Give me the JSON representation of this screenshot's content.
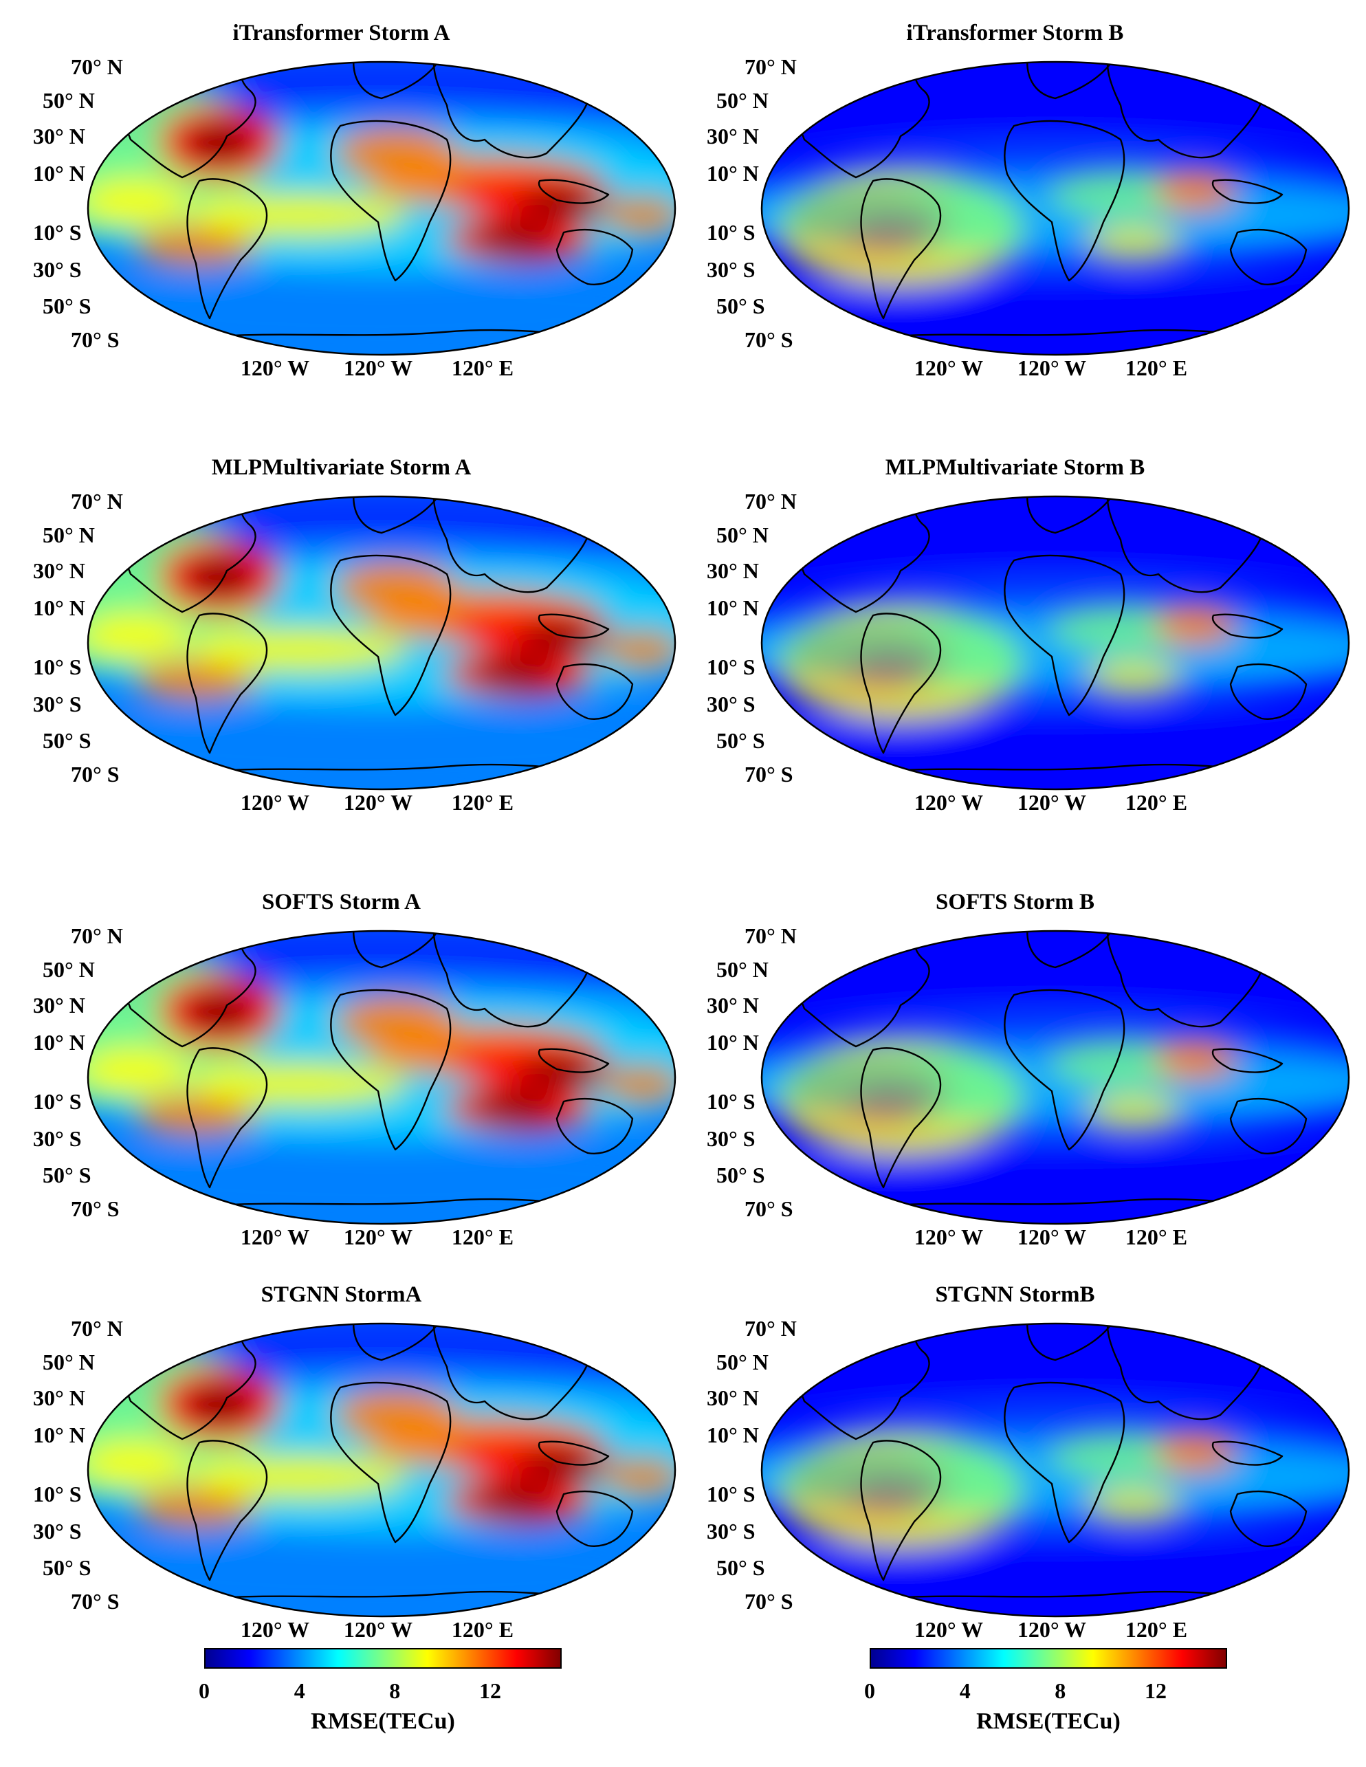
{
  "figure": {
    "colormap": [
      "#00008f",
      "#0000ff",
      "#0080ff",
      "#00ffff",
      "#80ff80",
      "#ffff00",
      "#ff8000",
      "#ff0000",
      "#800000"
    ],
    "panels": [
      {
        "title": "iTransformer  Storm A",
        "lat_labels": [
          "70° N",
          "50° N",
          "30° N",
          "10° N",
          "10° S",
          "30° S",
          "50° S",
          "70° S"
        ],
        "lon_labels": [
          "120° W",
          "120° W",
          "120° E"
        ]
      },
      {
        "title": "iTransformer  Storm B",
        "lat_labels": [
          "70° N",
          "50° N",
          "30° N",
          "10° N",
          "10° S",
          "30° S",
          "50° S",
          "70° S"
        ],
        "lon_labels": [
          "120° W",
          "120° W",
          "120° E"
        ]
      },
      {
        "title": "MLPMultivariate  Storm A",
        "lat_labels": [
          "70° N",
          "50° N",
          "30° N",
          "10° N",
          "10° S",
          "30° S",
          "50° S",
          "70° S"
        ],
        "lon_labels": [
          "120° W",
          "120° W",
          "120° E"
        ]
      },
      {
        "title": "MLPMultivariate  Storm B",
        "lat_labels": [
          "70° N",
          "50° N",
          "30° N",
          "10° N",
          "10° S",
          "30° S",
          "50° S",
          "70° S"
        ],
        "lon_labels": [
          "120° W",
          "120° W",
          "120° E"
        ]
      },
      {
        "title": "SOFTS  Storm A",
        "lat_labels": [
          "70° N",
          "50° N",
          "30° N",
          "10° N",
          "10° S",
          "30° S",
          "50° S",
          "70° S"
        ],
        "lon_labels": [
          "120° W",
          "120° W",
          "120° E"
        ]
      },
      {
        "title": "SOFTS  Storm B",
        "lat_labels": [
          "70° N",
          "50° N",
          "30° N",
          "10° N",
          "10° S",
          "30° S",
          "50° S",
          "70° S"
        ],
        "lon_labels": [
          "120° W",
          "120° W",
          "120° E"
        ]
      },
      {
        "title": "STGNN StormA",
        "lat_labels": [
          "70° N",
          "50° N",
          "30° N",
          "10° N",
          "10° S",
          "30° S",
          "50° S",
          "70° S"
        ],
        "lon_labels": [
          "120° W",
          "120° W",
          "120° E"
        ]
      },
      {
        "title": "STGNN StormB",
        "lat_labels": [
          "70° N",
          "50° N",
          "30° N",
          "10° N",
          "10° S",
          "30° S",
          "50° S",
          "70° S"
        ],
        "lon_labels": [
          "120° W",
          "120° W",
          "120° E"
        ]
      }
    ],
    "colorbar": {
      "ticks": [
        "0",
        "4",
        "8",
        "12"
      ],
      "tick_values": [
        0,
        4,
        8,
        12
      ],
      "range": [
        0,
        15
      ],
      "label": "RMSE(TECu)"
    }
  }
}
